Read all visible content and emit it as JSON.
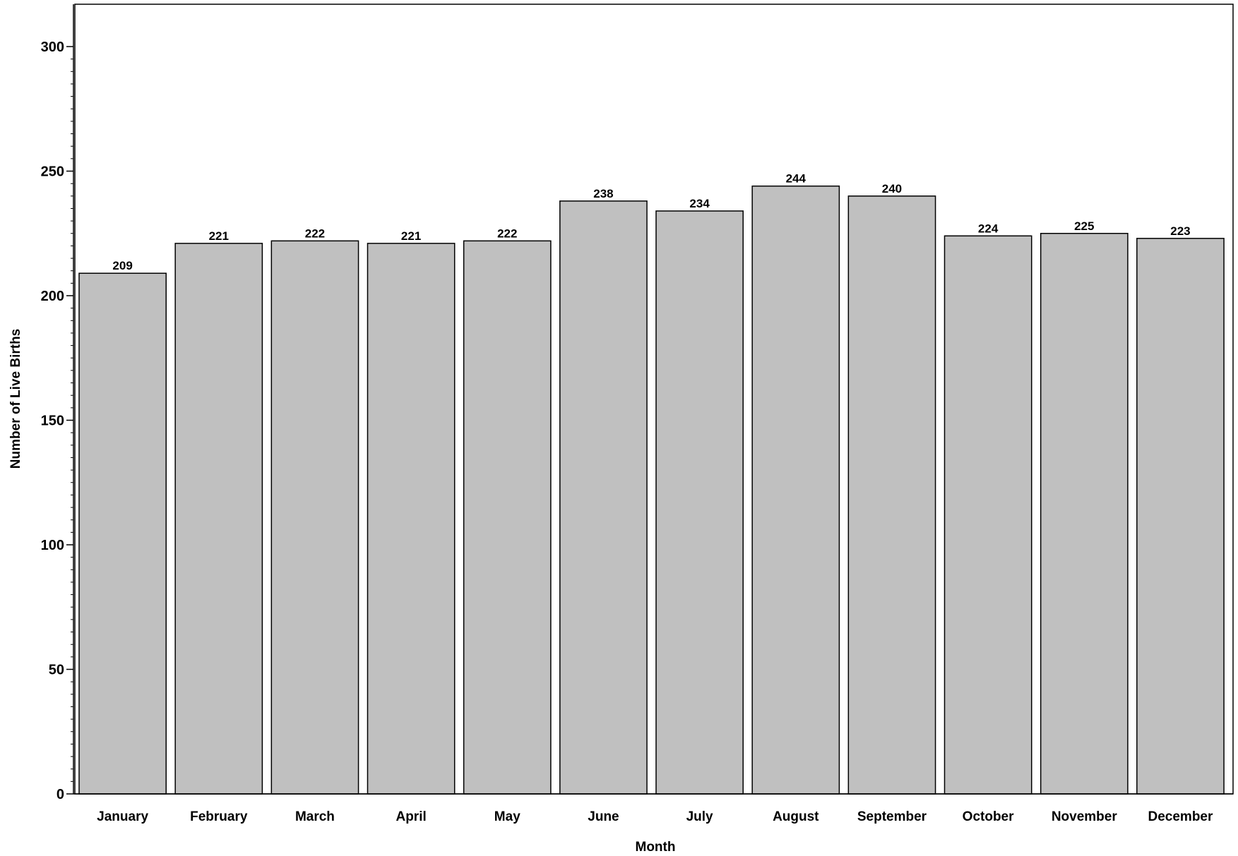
{
  "chart_data": {
    "type": "bar",
    "title": "",
    "xlabel": "Month",
    "ylabel": "Number of Live Births",
    "categories": [
      "January",
      "February",
      "March",
      "April",
      "May",
      "June",
      "July",
      "August",
      "September",
      "October",
      "November",
      "December"
    ],
    "values": [
      209,
      221,
      222,
      221,
      222,
      238,
      234,
      244,
      240,
      224,
      225,
      223
    ],
    "ylim": [
      0,
      300
    ],
    "yticks": [
      "0",
      "50",
      "100",
      "150",
      "200",
      "250",
      "300"
    ],
    "bar_color": "#c0c0c0",
    "bar_edge_color": "#000000",
    "grid": false,
    "legend": "none"
  }
}
